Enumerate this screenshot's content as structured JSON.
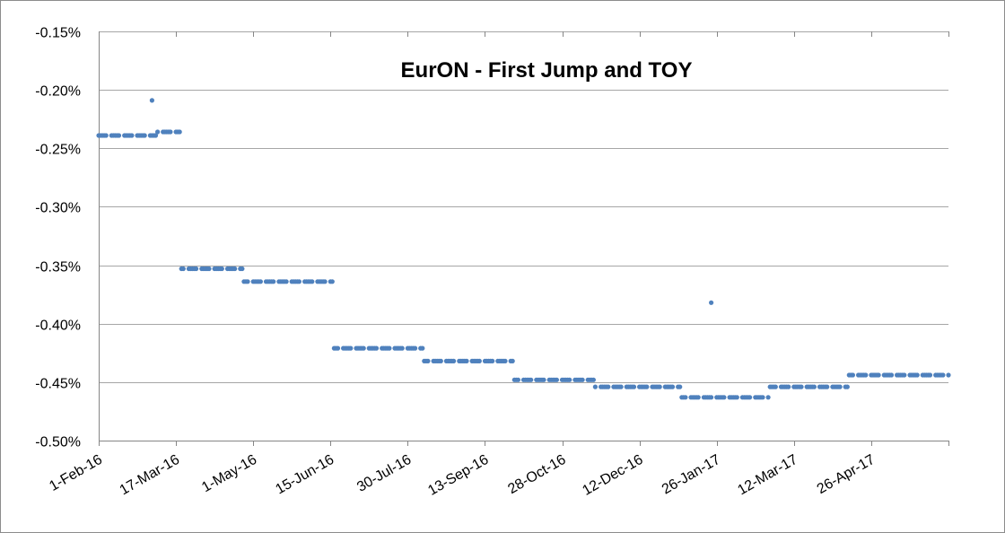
{
  "chart_data": {
    "type": "scatter",
    "title": "EurON - First Jump and TOY",
    "xlabel": "",
    "ylabel": "",
    "x_axis": {
      "type": "date",
      "range": [
        "2016-02-01",
        "2017-05-08"
      ],
      "tick_labels": [
        "1-Feb-16",
        "17-Mar-16",
        "1-May-16",
        "15-Jun-16",
        "30-Jul-16",
        "13-Sep-16",
        "28-Oct-16",
        "12-Dec-16",
        "26-Jan-17",
        "12-Mar-17",
        "26-Apr-17"
      ]
    },
    "y_axis": {
      "range": [
        -0.5,
        -0.15
      ],
      "unit": "%",
      "tick_values": [
        -0.5,
        -0.45,
        -0.4,
        -0.35,
        -0.3,
        -0.25,
        -0.2,
        -0.15
      ],
      "tick_labels": [
        "-0.50%",
        "-0.45%",
        "-0.40%",
        "-0.35%",
        "-0.30%",
        "-0.25%",
        "-0.20%",
        "-0.15%"
      ]
    },
    "grid": "horizontal",
    "legend": "none",
    "marker_color": "#4F81BD",
    "series": [
      {
        "segments": [
          {
            "start": "2016-02-01",
            "end": "2016-03-03",
            "value": -0.239
          },
          {
            "start": "2016-03-04",
            "end": "2016-03-16",
            "value": -0.236
          },
          {
            "start": "2016-03-17",
            "end": "2016-04-19",
            "value": -0.353
          },
          {
            "start": "2016-04-20",
            "end": "2016-06-07",
            "value": -0.364
          },
          {
            "start": "2016-06-08",
            "end": "2016-07-26",
            "value": -0.421
          },
          {
            "start": "2016-07-27",
            "end": "2016-09-13",
            "value": -0.432
          },
          {
            "start": "2016-09-14",
            "end": "2016-10-27",
            "value": -0.448
          },
          {
            "start": "2016-10-28",
            "end": "2016-12-13",
            "value": -0.454
          },
          {
            "start": "2016-12-14",
            "end": "2017-01-30",
            "value": -0.463
          },
          {
            "start": "2017-01-31",
            "end": "2017-03-14",
            "value": -0.454
          },
          {
            "start": "2017-03-15",
            "end": "2017-05-08",
            "value": -0.444
          }
        ],
        "outliers": [
          {
            "x": "2016-03-01",
            "y": -0.209
          },
          {
            "x": "2016-12-30",
            "y": -0.382
          }
        ]
      }
    ]
  }
}
